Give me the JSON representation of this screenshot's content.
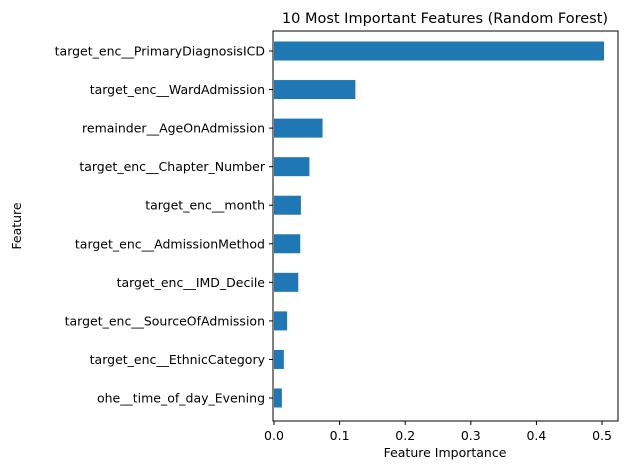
{
  "chart_data": {
    "type": "bar",
    "orientation": "horizontal",
    "title": "10 Most Important Features (Random Forest)",
    "xlabel": "Feature Importance",
    "ylabel": "Feature",
    "xlim": [
      0,
      0.525
    ],
    "xticks": [
      0,
      0.1,
      0.2,
      0.3,
      0.4,
      0.5
    ],
    "xtick_labels": [
      "0.0",
      "0.1",
      "0.2",
      "0.3",
      "0.4",
      "0.5"
    ],
    "grid": false,
    "bar_color": "#1f77b4",
    "categories": [
      "target_enc__PrimaryDiagnosisICD",
      "target_enc__WardAdmission",
      "remainder__AgeOnAdmission",
      "target_enc__Chapter_Number",
      "target_enc__month",
      "target_enc__AdmissionMethod",
      "target_enc__IMD_Decile",
      "target_enc__SourceOfAdmission",
      "target_enc__EthnicCategory",
      "ohe__time_of_day_Evening"
    ],
    "values": [
      0.503,
      0.124,
      0.074,
      0.054,
      0.041,
      0.04,
      0.037,
      0.02,
      0.015,
      0.012
    ]
  }
}
